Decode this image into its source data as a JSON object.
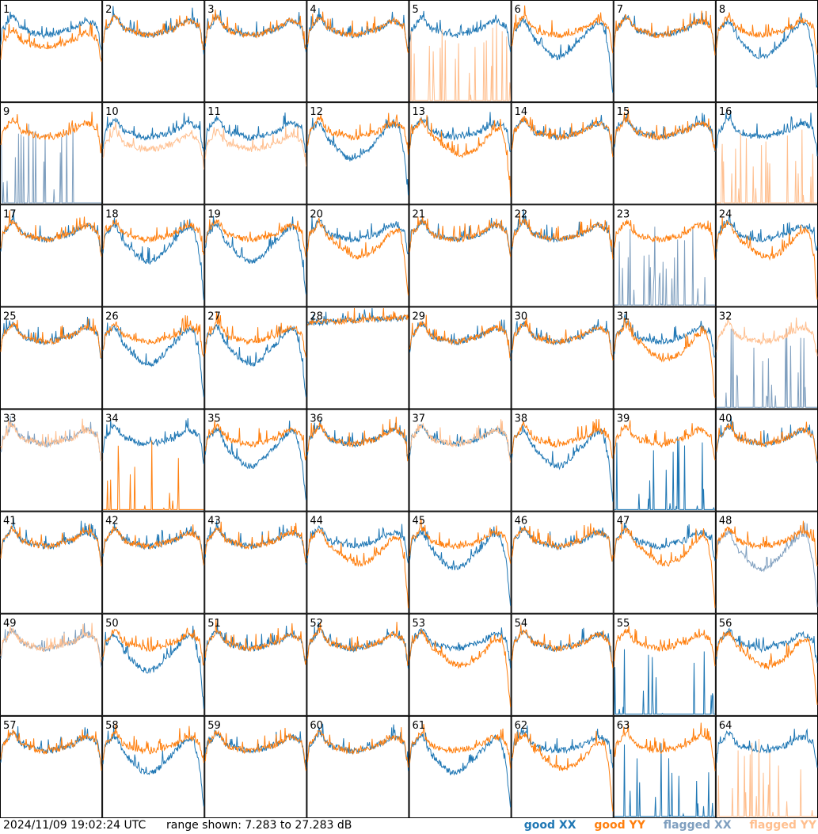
{
  "chart_data": {
    "type": "line",
    "description_units": "dB",
    "grid": {
      "rows": 8,
      "cols": 8
    },
    "ylim": [
      7.283,
      27.283
    ],
    "panels": [
      {
        "id": "1",
        "shape": "xy_split",
        "xx": "good",
        "yy": "good"
      },
      {
        "id": "2",
        "shape": "normal",
        "xx": "good",
        "yy": "good"
      },
      {
        "id": "3",
        "shape": "normal",
        "xx": "good",
        "yy": "good"
      },
      {
        "id": "4",
        "shape": "normal",
        "xx": "good",
        "yy": "good"
      },
      {
        "id": "5",
        "shape": "yy_missing",
        "xx": "good",
        "yy": "flagged"
      },
      {
        "id": "6",
        "shape": "xx_dip",
        "xx": "good",
        "yy": "good"
      },
      {
        "id": "7",
        "shape": "normal",
        "xx": "good",
        "yy": "good"
      },
      {
        "id": "8",
        "shape": "xx_dip",
        "xx": "good",
        "yy": "good"
      },
      {
        "id": "9",
        "shape": "xx_missing",
        "xx": "flagged",
        "yy": "good"
      },
      {
        "id": "10",
        "shape": "xy_split",
        "xx": "good",
        "yy": "flagged"
      },
      {
        "id": "11",
        "shape": "xy_split",
        "xx": "good",
        "yy": "flagged"
      },
      {
        "id": "12",
        "shape": "xx_dip",
        "xx": "good",
        "yy": "good"
      },
      {
        "id": "13",
        "shape": "yy_dip",
        "xx": "good",
        "yy": "good"
      },
      {
        "id": "14",
        "shape": "normal",
        "xx": "good",
        "yy": "good"
      },
      {
        "id": "15",
        "shape": "normal",
        "xx": "good",
        "yy": "good"
      },
      {
        "id": "16",
        "shape": "yy_missing",
        "xx": "good",
        "yy": "flagged"
      },
      {
        "id": "17",
        "shape": "normal",
        "xx": "good",
        "yy": "good"
      },
      {
        "id": "18",
        "shape": "xx_dip",
        "xx": "good",
        "yy": "good"
      },
      {
        "id": "19",
        "shape": "xx_dip",
        "xx": "good",
        "yy": "good"
      },
      {
        "id": "20",
        "shape": "yy_dip",
        "xx": "good",
        "yy": "good"
      },
      {
        "id": "21",
        "shape": "normal",
        "xx": "good",
        "yy": "good"
      },
      {
        "id": "22",
        "shape": "normal",
        "xx": "good",
        "yy": "good"
      },
      {
        "id": "23",
        "shape": "xx_missing",
        "xx": "flagged",
        "yy": "good"
      },
      {
        "id": "24",
        "shape": "yy_dip",
        "xx": "good",
        "yy": "good"
      },
      {
        "id": "25",
        "shape": "normal",
        "xx": "good",
        "yy": "good"
      },
      {
        "id": "26",
        "shape": "xx_dip",
        "xx": "good",
        "yy": "good"
      },
      {
        "id": "27",
        "shape": "xx_dip",
        "xx": "good",
        "yy": "good"
      },
      {
        "id": "28",
        "shape": "flat_high",
        "xx": "good",
        "yy": "good"
      },
      {
        "id": "29",
        "shape": "normal",
        "xx": "good",
        "yy": "good"
      },
      {
        "id": "30",
        "shape": "normal",
        "xx": "good",
        "yy": "good"
      },
      {
        "id": "31",
        "shape": "yy_dip",
        "xx": "good",
        "yy": "good"
      },
      {
        "id": "32",
        "shape": "xx_missing",
        "xx": "flagged",
        "yy": "flagged"
      },
      {
        "id": "33",
        "shape": "normal",
        "xx": "flagged",
        "yy": "flagged"
      },
      {
        "id": "34",
        "shape": "yy_missing",
        "xx": "good",
        "yy": "good"
      },
      {
        "id": "35",
        "shape": "xx_dip",
        "xx": "good",
        "yy": "good"
      },
      {
        "id": "36",
        "shape": "normal",
        "xx": "good",
        "yy": "good"
      },
      {
        "id": "37",
        "shape": "normal",
        "xx": "good",
        "yy": "flagged"
      },
      {
        "id": "38",
        "shape": "xx_dip",
        "xx": "good",
        "yy": "good"
      },
      {
        "id": "39",
        "shape": "xx_missing",
        "xx": "good",
        "yy": "good"
      },
      {
        "id": "40",
        "shape": "normal",
        "xx": "good",
        "yy": "good"
      },
      {
        "id": "41",
        "shape": "normal",
        "xx": "good",
        "yy": "good"
      },
      {
        "id": "42",
        "shape": "normal",
        "xx": "good",
        "yy": "good"
      },
      {
        "id": "43",
        "shape": "normal",
        "xx": "good",
        "yy": "good"
      },
      {
        "id": "44",
        "shape": "yy_dip",
        "xx": "good",
        "yy": "good"
      },
      {
        "id": "45",
        "shape": "xx_dip",
        "xx": "good",
        "yy": "good"
      },
      {
        "id": "46",
        "shape": "normal",
        "xx": "good",
        "yy": "good"
      },
      {
        "id": "47",
        "shape": "yy_dip",
        "xx": "good",
        "yy": "good"
      },
      {
        "id": "48",
        "shape": "xx_dip",
        "xx": "flagged",
        "yy": "good"
      },
      {
        "id": "49",
        "shape": "normal",
        "xx": "flagged",
        "yy": "flagged"
      },
      {
        "id": "50",
        "shape": "xx_dip",
        "xx": "good",
        "yy": "good"
      },
      {
        "id": "51",
        "shape": "normal",
        "xx": "good",
        "yy": "good"
      },
      {
        "id": "52",
        "shape": "normal",
        "xx": "good",
        "yy": "good"
      },
      {
        "id": "53",
        "shape": "yy_dip",
        "xx": "good",
        "yy": "good"
      },
      {
        "id": "54",
        "shape": "normal",
        "xx": "good",
        "yy": "good"
      },
      {
        "id": "55",
        "shape": "xx_missing",
        "xx": "good",
        "yy": "good"
      },
      {
        "id": "56",
        "shape": "yy_dip",
        "xx": "good",
        "yy": "good"
      },
      {
        "id": "57",
        "shape": "normal",
        "xx": "good",
        "yy": "good"
      },
      {
        "id": "58",
        "shape": "xx_dip",
        "xx": "good",
        "yy": "good"
      },
      {
        "id": "59",
        "shape": "normal",
        "xx": "good",
        "yy": "good"
      },
      {
        "id": "60",
        "shape": "normal",
        "xx": "good",
        "yy": "good"
      },
      {
        "id": "61",
        "shape": "xx_dip",
        "xx": "good",
        "yy": "good"
      },
      {
        "id": "62",
        "shape": "yy_dip",
        "xx": "good",
        "yy": "good"
      },
      {
        "id": "63",
        "shape": "xx_missing",
        "xx": "good",
        "yy": "good"
      },
      {
        "id": "64",
        "shape": "yy_missing",
        "xx": "good",
        "yy": "flagged"
      }
    ]
  },
  "footer": {
    "timestamp": "2024/11/09 19:02:24 UTC",
    "range_text": "range shown: 7.283 to 27.283 dB"
  },
  "legend": {
    "good_xx": "good XX",
    "good_yy": "good YY",
    "flagged_xx": "flagged XX",
    "flagged_yy": "flagged YY"
  },
  "colors": {
    "good_xx": "#1f77b4",
    "good_yy": "#ff7f0e",
    "flagged_xx": "#7f9fbf",
    "flagged_yy": "#ffbf8f"
  }
}
